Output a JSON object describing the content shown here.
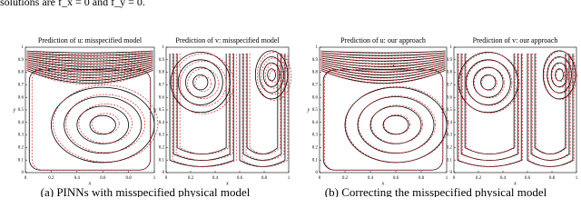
{
  "header": {
    "text": "solutions are f_x = 0 and f_y = 0.",
    "dot": "."
  },
  "axes": {
    "x_label": "x",
    "y_label": "y",
    "xticks": [
      0,
      0.2,
      0.4,
      0.6,
      0.8,
      1
    ],
    "yticks": [
      0,
      0.1,
      0.2,
      0.3,
      0.4,
      0.5,
      0.6,
      0.7,
      0.8,
      0.9,
      1
    ]
  },
  "panels": [
    {
      "title": "Prediction of u: misspecified model"
    },
    {
      "title": "Prediction of v: misspecified model"
    },
    {
      "title": "Prediction of u: our approach"
    },
    {
      "title": "Prediction of v: our approach"
    }
  ],
  "captions": [
    "(a) PINNs with misspecified physical model",
    "(b) Correcting the misspecified physical model"
  ]
}
